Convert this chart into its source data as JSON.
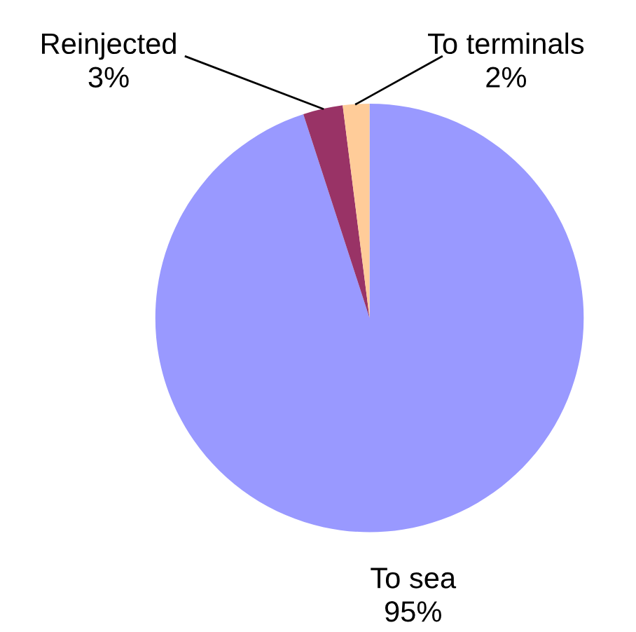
{
  "chart_data": {
    "type": "pie",
    "categories": [
      "To sea",
      "Reinjected",
      "To terminals"
    ],
    "values": [
      95,
      3,
      2
    ],
    "colors": [
      "#9999ff",
      "#993366",
      "#ffcc99"
    ],
    "value_labels": [
      "95%",
      "3%",
      "2%"
    ]
  }
}
